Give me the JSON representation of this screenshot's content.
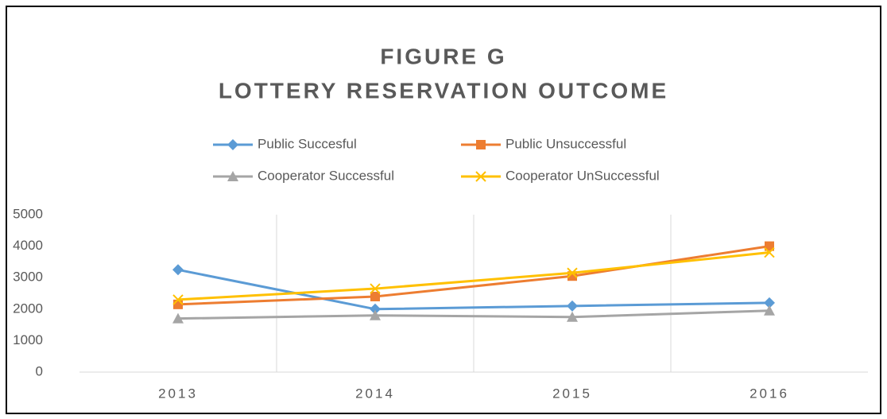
{
  "chart_data": {
    "type": "line",
    "title": "FIGURE G",
    "subtitle": "LOTTERY RESERVATION OUTCOME",
    "categories": [
      "2013",
      "2014",
      "2015",
      "2016"
    ],
    "series": [
      {
        "name": "Public Succesful",
        "color": "#5b9bd5",
        "marker": "diamond",
        "values": [
          3250,
          2000,
          2100,
          2200
        ]
      },
      {
        "name": "Public Unsuccessful",
        "color": "#ed7d31",
        "marker": "square",
        "values": [
          2150,
          2400,
          3050,
          4000
        ]
      },
      {
        "name": "Cooperator Successful",
        "color": "#a5a5a5",
        "marker": "triangle",
        "values": [
          1700,
          1800,
          1750,
          1950
        ]
      },
      {
        "name": "Cooperator UnSuccessful",
        "color": "#ffc000",
        "marker": "x",
        "values": [
          2300,
          2650,
          3150,
          3800
        ]
      }
    ],
    "ylim": [
      0,
      5000
    ],
    "yticks": [
      0,
      1000,
      2000,
      3000,
      4000,
      5000
    ],
    "grid": "vertical",
    "legend": "top"
  }
}
